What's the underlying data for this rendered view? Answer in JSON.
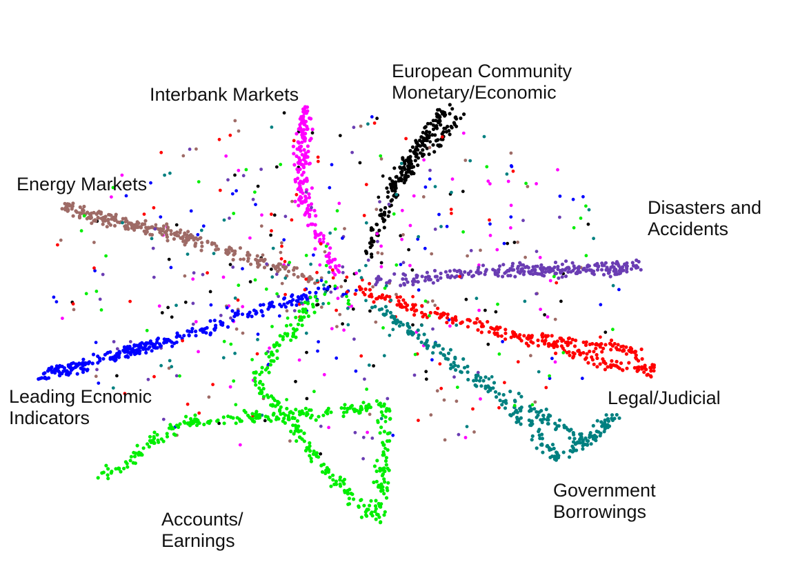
{
  "chart_data": {
    "type": "scatter",
    "title": "",
    "xlabel": "",
    "ylabel": "",
    "axes_visible": false,
    "grid": false,
    "legend": "none",
    "series": [
      {
        "key": "eu",
        "color": "#000000",
        "label_lines": [
          "European Community",
          "Monetary/Economic"
        ],
        "points": [
          [
            0.45,
            1.0
          ],
          [
            0.9,
            3.3
          ],
          [
            1.2,
            4.3
          ],
          [
            1.35,
            4.6
          ],
          [
            1.45,
            4.9
          ],
          [
            1.55,
            5.0
          ],
          [
            1.6,
            5.1
          ],
          [
            1.4,
            4.7
          ],
          [
            1.3,
            4.4
          ],
          [
            1.1,
            3.8
          ],
          [
            0.8,
            2.8
          ],
          [
            1.8,
            5.0
          ]
        ]
      },
      {
        "key": "interbank",
        "color": "#ff00ff",
        "label_lines": [
          "Interbank Markets"
        ],
        "points": [
          [
            0.0,
            0.3
          ],
          [
            -0.35,
            1.7
          ],
          [
            -0.55,
            2.7
          ],
          [
            -0.6,
            3.6
          ],
          [
            -0.55,
            4.6
          ],
          [
            -0.45,
            5.3
          ],
          [
            -0.5,
            4.0
          ],
          [
            -0.45,
            2.2
          ]
        ]
      },
      {
        "key": "energy",
        "color": "#9e6b66",
        "label_lines": [
          "Energy Markets"
        ],
        "points": [
          [
            -0.3,
            0.1
          ],
          [
            -1.5,
            1.0
          ],
          [
            -2.6,
            1.6
          ],
          [
            -3.5,
            2.0
          ],
          [
            -4.0,
            2.3
          ],
          [
            -3.2,
            1.9
          ],
          [
            -2.0,
            1.3
          ]
        ]
      },
      {
        "key": "disasters",
        "color": "#6a3db3",
        "label_lines": [
          "Disasters and",
          "Accidents"
        ],
        "points": [
          [
            0.5,
            0.1
          ],
          [
            1.8,
            0.35
          ],
          [
            2.8,
            0.5
          ],
          [
            3.3,
            0.45
          ],
          [
            3.8,
            0.5
          ],
          [
            4.4,
            0.55
          ],
          [
            3.5,
            0.48
          ],
          [
            2.3,
            0.4
          ]
        ]
      },
      {
        "key": "leading",
        "color": "#0000ff",
        "label_lines": [
          "Leading Ecnomic",
          "Indicators"
        ],
        "points": [
          [
            -0.2,
            -0.1
          ],
          [
            -1.0,
            -0.6
          ],
          [
            -2.0,
            -1.3
          ],
          [
            -3.0,
            -1.9
          ],
          [
            -3.7,
            -2.3
          ],
          [
            -4.3,
            -2.6
          ],
          [
            -2.5,
            -1.6
          ]
        ]
      },
      {
        "key": "legal",
        "color": "#ff0000",
        "label_lines": [
          "Legal/Judicial"
        ],
        "points": [
          [
            0.3,
            -0.1
          ],
          [
            1.2,
            -0.7
          ],
          [
            2.3,
            -1.3
          ],
          [
            3.2,
            -1.8
          ],
          [
            4.0,
            -2.3
          ],
          [
            4.6,
            -2.5
          ],
          [
            4.3,
            -1.9
          ],
          [
            2.8,
            -1.5
          ]
        ]
      },
      {
        "key": "government",
        "color": "#008080",
        "label_lines": [
          "Government",
          "Borrowings"
        ],
        "points": [
          [
            0.5,
            -0.5
          ],
          [
            1.4,
            -1.8
          ],
          [
            2.1,
            -2.8
          ],
          [
            2.7,
            -3.9
          ],
          [
            3.2,
            -5.0
          ],
          [
            4.0,
            -3.8
          ],
          [
            3.6,
            -4.6
          ],
          [
            2.5,
            -3.2
          ]
        ]
      },
      {
        "key": "accounts",
        "color": "#00ee00",
        "label_lines": [
          "Accounts/",
          "Earnings"
        ],
        "points": [
          [
            -0.3,
            -0.3
          ],
          [
            -0.8,
            -1.6
          ],
          [
            -1.2,
            -2.8
          ],
          [
            -0.6,
            -4.2
          ],
          [
            -0.2,
            -5.3
          ],
          [
            0.3,
            -6.3
          ],
          [
            0.6,
            -6.8
          ],
          [
            0.7,
            -3.5
          ],
          [
            -2.3,
            -4.0
          ],
          [
            -3.4,
            -5.6
          ]
        ]
      }
    ]
  }
}
